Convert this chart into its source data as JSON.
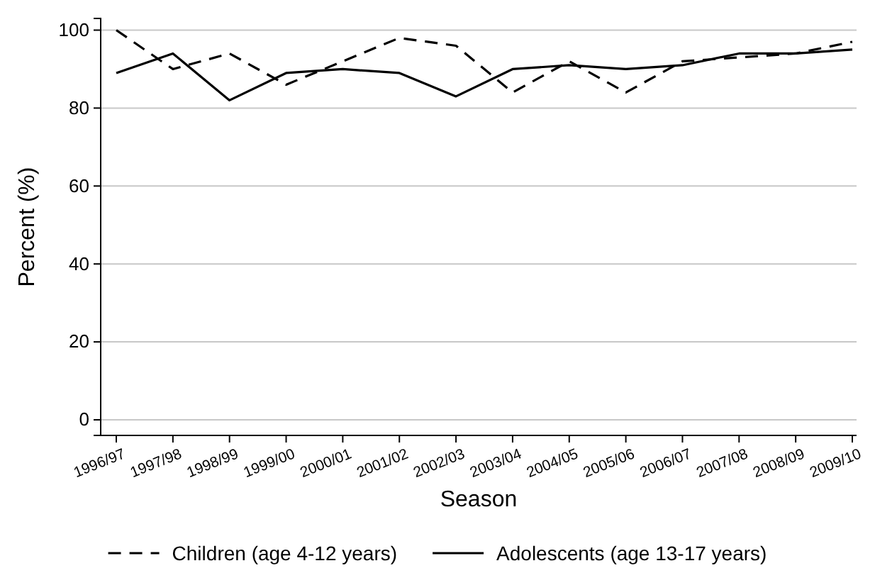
{
  "chart_data": {
    "type": "line",
    "xlabel": "Season",
    "ylabel": "Percent (%)",
    "categories": [
      "1996/97",
      "1997/98",
      "1998/99",
      "1999/00",
      "2000/01",
      "2001/02",
      "2002/03",
      "2003/04",
      "2004/05",
      "2005/06",
      "2006/07",
      "2007/08",
      "2008/09",
      "2009/10"
    ],
    "series": [
      {
        "name": "Children (age 4-12 years)",
        "color": "#000000",
        "line_style": "dashed",
        "values": [
          100,
          90,
          94,
          86,
          92,
          98,
          96,
          84,
          92,
          84,
          92,
          93,
          94,
          97
        ]
      },
      {
        "name": "Adolescents (age 13-17 years)",
        "color": "#000000",
        "line_style": "solid",
        "values": [
          89,
          94,
          82,
          89,
          90,
          89,
          83,
          90,
          91,
          90,
          91,
          94,
          94,
          95
        ]
      }
    ],
    "ylim": [
      -4,
      103
    ],
    "yticks": [
      0,
      20,
      40,
      60,
      80,
      100
    ],
    "grid": "y",
    "legend": "bottom"
  }
}
